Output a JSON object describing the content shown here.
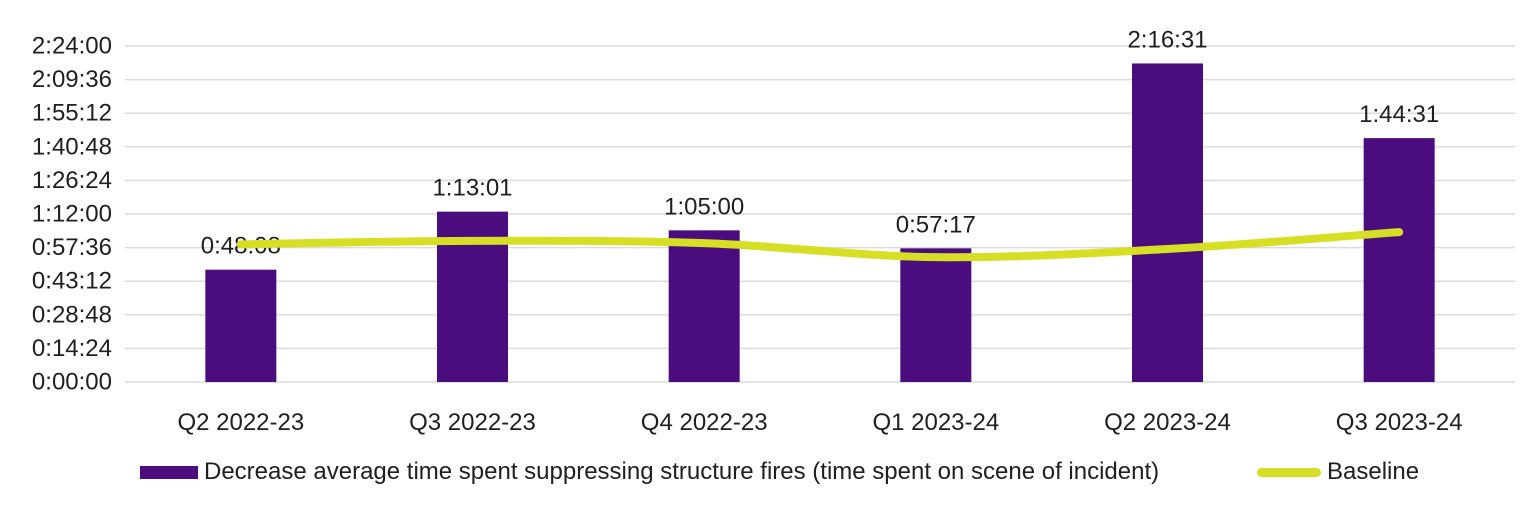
{
  "chart_data": {
    "type": "bar",
    "subtype": "bar-with-line-overlay",
    "title": "",
    "categories": [
      "Q2 2022-23",
      "Q3 2022-23",
      "Q4 2022-23",
      "Q1 2023-24",
      "Q2 2023-24",
      "Q3 2023-24"
    ],
    "series": [
      {
        "name": "Decrease average time spent suppressing structure fires (time spent on scene of incident)",
        "type": "bar",
        "color": "#4B0C7E",
        "values": [
          "0:48:08",
          "1:13:01",
          "1:05:00",
          "0:57:17",
          "2:16:31",
          "1:44:31"
        ]
      },
      {
        "name": "Baseline",
        "type": "line",
        "color": "#D6DF23",
        "smoothed": true,
        "values_estimated": [
          "0:59:00",
          "1:00:30",
          "0:59:30",
          "0:53:30",
          "0:57:00",
          "1:04:15"
        ]
      }
    ],
    "data_labels": [
      "0:48:08",
      "1:13:01",
      "1:05:00",
      "0:57:17",
      "2:16:31",
      "1:44:31"
    ],
    "y_axis": {
      "min": "0:00:00",
      "max": "2:24:00",
      "tick_step": "0:14:24",
      "ticks": [
        "0:00:00",
        "0:14:24",
        "0:28:48",
        "0:43:12",
        "0:57:36",
        "1:12:00",
        "1:26:24",
        "1:40:48",
        "1:55:12",
        "2:09:36",
        "2:24:00"
      ]
    },
    "x_axis": {
      "label": ""
    },
    "grid": true,
    "legend_position": "bottom"
  },
  "colors": {
    "bar": "#4B0C7E",
    "line": "#D6DF23",
    "gridline": "#DCDCDC",
    "text": "#1F1F1F",
    "background": "#FFFFFF"
  }
}
